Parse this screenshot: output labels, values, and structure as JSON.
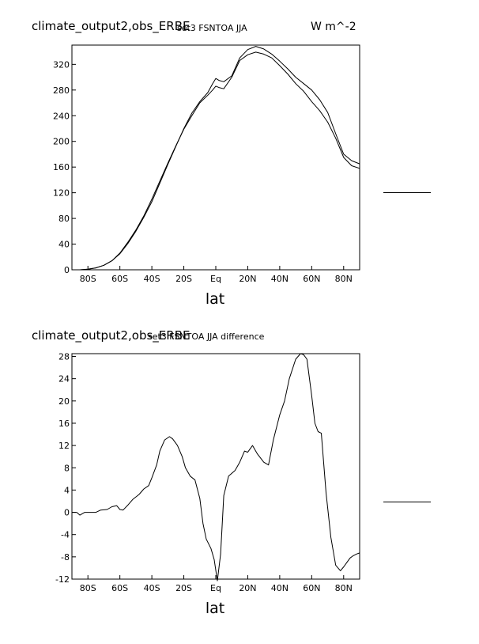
{
  "chart_data": [
    {
      "type": "line",
      "title_left": "climate_output2,obs_ERBE",
      "title_center": "set3 FSNTOA JJA",
      "title_right": "W m^-2",
      "xlabel": "lat",
      "ylabel": "",
      "xlim": [
        -90,
        90
      ],
      "ylim": [
        0,
        350
      ],
      "xticks": [
        -80,
        -60,
        -40,
        -20,
        0,
        20,
        40,
        60,
        80
      ],
      "xtick_labels": [
        "80S",
        "60S",
        "40S",
        "20S",
        "Eq",
        "20N",
        "40N",
        "60N",
        "80N"
      ],
      "yticks": [
        0,
        40,
        80,
        120,
        160,
        200,
        240,
        280,
        320
      ],
      "ytick_labels": [
        "0",
        "40",
        "80",
        "120",
        "160",
        "200",
        "240",
        "280",
        "320"
      ],
      "grid": false,
      "series": [
        {
          "x": [
            -90,
            -85,
            -80,
            -75,
            -70,
            -65,
            -60,
            -55,
            -50,
            -45,
            -40,
            -35,
            -30,
            -25,
            -20,
            -15,
            -10,
            -5,
            -2,
            0,
            2,
            5,
            10,
            15,
            20,
            25,
            30,
            35,
            40,
            45,
            50,
            55,
            60,
            65,
            70,
            75,
            80,
            85,
            90
          ],
          "values": [
            0,
            0,
            1,
            3,
            7,
            14,
            26,
            43,
            62,
            84,
            110,
            138,
            166,
            193,
            219,
            240,
            260,
            272,
            280,
            286,
            284,
            282,
            300,
            326,
            335,
            339,
            336,
            330,
            318,
            305,
            290,
            278,
            262,
            248,
            230,
            205,
            175,
            162,
            158
          ]
        },
        {
          "x": [
            -90,
            -85,
            -80,
            -75,
            -70,
            -65,
            -60,
            -55,
            -50,
            -45,
            -40,
            -35,
            -30,
            -25,
            -20,
            -15,
            -10,
            -5,
            -2,
            0,
            2,
            5,
            10,
            15,
            20,
            25,
            30,
            35,
            40,
            45,
            50,
            55,
            60,
            65,
            70,
            75,
            80,
            85,
            90
          ],
          "values": [
            0,
            0,
            1,
            3,
            7,
            14,
            25,
            41,
            60,
            82,
            106,
            135,
            164,
            192,
            220,
            244,
            262,
            276,
            290,
            298,
            295,
            293,
            302,
            330,
            343,
            348,
            344,
            336,
            325,
            313,
            300,
            290,
            280,
            265,
            245,
            212,
            180,
            170,
            165
          ]
        }
      ]
    },
    {
      "type": "line",
      "title_left": "climate_output2,obs_ERBE",
      "title_center": "set3 FSNTOA JJA difference",
      "xlabel": "lat",
      "ylabel": "",
      "xlim": [
        -90,
        90
      ],
      "ylim": [
        -12,
        28.5
      ],
      "xticks": [
        -80,
        -60,
        -40,
        -20,
        0,
        20,
        40,
        60,
        80
      ],
      "xtick_labels": [
        "80S",
        "60S",
        "40S",
        "20S",
        "Eq",
        "20N",
        "40N",
        "60N",
        "80N"
      ],
      "yticks": [
        -12,
        -8,
        -4,
        0,
        4,
        8,
        12,
        16,
        20,
        24,
        28
      ],
      "ytick_labels": [
        "-12",
        "-8",
        "-4",
        "0",
        "4",
        "8",
        "12",
        "16",
        "20",
        "24",
        "28"
      ],
      "grid": false,
      "series": [
        {
          "x": [
            -90,
            -87,
            -85,
            -82,
            -78,
            -75,
            -72,
            -68,
            -65,
            -62,
            -60,
            -58,
            -55,
            -52,
            -48,
            -45,
            -42,
            -40,
            -37,
            -35,
            -32,
            -29,
            -27,
            -24,
            -21,
            -19,
            -16,
            -13,
            -10,
            -8,
            -6,
            -3,
            -1,
            1,
            3,
            5,
            8,
            12,
            15,
            18,
            20,
            23,
            26,
            30,
            33,
            36,
            40,
            43,
            46,
            50,
            53,
            55,
            57,
            60,
            62,
            64,
            66,
            69,
            72,
            75,
            78,
            80,
            82,
            84,
            86,
            88,
            90
          ],
          "values": [
            0,
            0,
            -0.5,
            0,
            0,
            0,
            0.4,
            0.5,
            1,
            1.2,
            0.5,
            0.4,
            1.3,
            2.3,
            3.2,
            4.2,
            4.8,
            6.2,
            8.5,
            11,
            13,
            13.6,
            13.2,
            12,
            10,
            8,
            6.5,
            5.8,
            2.5,
            -2,
            -4.8,
            -6.5,
            -8.5,
            -12.3,
            -7.5,
            3,
            6.5,
            7.5,
            9,
            11,
            10.8,
            12,
            10.5,
            9,
            8.5,
            13,
            17.5,
            20,
            24,
            27.5,
            28.5,
            28.3,
            27.5,
            21,
            16,
            14.5,
            14.2,
            3.5,
            -4.5,
            -9.5,
            -10.5,
            -9.8,
            -9,
            -8.2,
            -7.8,
            -7.5,
            -7.3
          ]
        }
      ]
    }
  ]
}
